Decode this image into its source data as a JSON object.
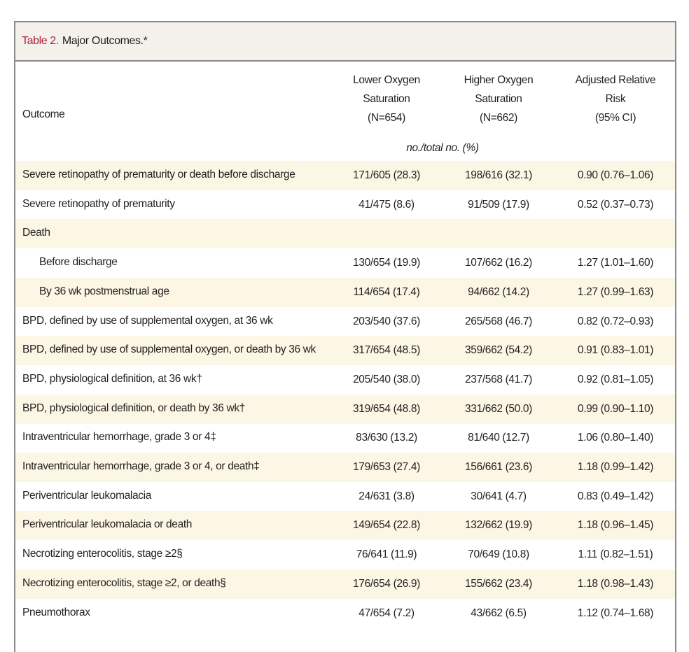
{
  "header": {
    "label": "Table 2.",
    "title": "Major Outcomes.*"
  },
  "table": {
    "columns": [
      [
        "Outcome"
      ],
      [
        "Lower Oxygen",
        "Saturation",
        "(N=654)"
      ],
      [
        "Higher Oxygen",
        "Saturation",
        "(N=662)"
      ],
      [
        "Adjusted Relative",
        "Risk",
        "(95% CI)"
      ]
    ],
    "units": "no./total no. (%)",
    "rows": [
      {
        "cells": [
          "Severe retinopathy of prematurity or death before discharge",
          "171/605 (28.3)",
          "198/616 (32.1)",
          "0.90 (0.76–1.06)"
        ]
      },
      {
        "cells": [
          "Severe retinopathy of prematurity",
          "41/475 (8.6)",
          "91/509 (17.9)",
          "0.52 (0.37–0.73)"
        ]
      },
      {
        "cells": [
          "Death"
        ]
      },
      {
        "cells": [
          "Before discharge",
          "130/654 (19.9)",
          "107/662 (16.2)",
          "1.27 (1.01–1.60)"
        ],
        "indent": true
      },
      {
        "cells": [
          "By 36 wk postmenstrual age",
          "114/654 (17.4)",
          "94/662 (14.2)",
          "1.27 (0.99–1.63)"
        ],
        "indent": true
      },
      {
        "cells": [
          "BPD, defined by use of supplemental oxygen, at 36 wk",
          "203/540 (37.6)",
          "265/568 (46.7)",
          "0.82 (0.72–0.93)"
        ]
      },
      {
        "cells": [
          "BPD, defined by use of supplemental oxygen, or death by 36 wk",
          "317/654 (48.5)",
          "359/662 (54.2)",
          "0.91 (0.83–1.01)"
        ]
      },
      {
        "cells": [
          "BPD, physiological definition, at 36 wk†",
          "205/540 (38.0)",
          "237/568 (41.7)",
          "0.92 (0.81–1.05)"
        ]
      },
      {
        "cells": [
          "BPD, physiological definition, or death by 36 wk†",
          "319/654 (48.8)",
          "331/662 (50.0)",
          "0.99 (0.90–1.10)"
        ]
      },
      {
        "cells": [
          "Intraventricular hemorrhage, grade 3 or 4‡",
          "83/630 (13.2)",
          "81/640 (12.7)",
          "1.06 (0.80–1.40)"
        ]
      },
      {
        "cells": [
          "Intraventricular hemorrhage, grade 3 or 4, or death‡",
          "179/653 (27.4)",
          "156/661 (23.6)",
          "1.18 (0.99–1.42)"
        ]
      },
      {
        "cells": [
          "Periventricular leukomalacia",
          "24/631 (3.8)",
          "30/641 (4.7)",
          "0.83 (0.49–1.42)"
        ]
      },
      {
        "cells": [
          "Periventricular leukomalacia or death",
          "149/654 (22.8)",
          "132/662 (19.9)",
          "1.18 (0.96–1.45)"
        ]
      },
      {
        "cells": [
          "Necrotizing enterocolitis, stage ≥2§",
          "76/641 (11.9)",
          "70/649 (10.8)",
          "1.11 (0.82–1.51)"
        ]
      },
      {
        "cells": [
          "Necrotizing enterocolitis, stage ≥2, or death§",
          "176/654 (26.9)",
          "155/662 (23.4)",
          "1.18 (0.98–1.43)"
        ]
      },
      {
        "cells": [
          "Pneumothorax",
          "47/654 (7.2)",
          "43/662 (6.5)",
          "1.12 (0.74–1.68)"
        ]
      }
    ]
  }
}
